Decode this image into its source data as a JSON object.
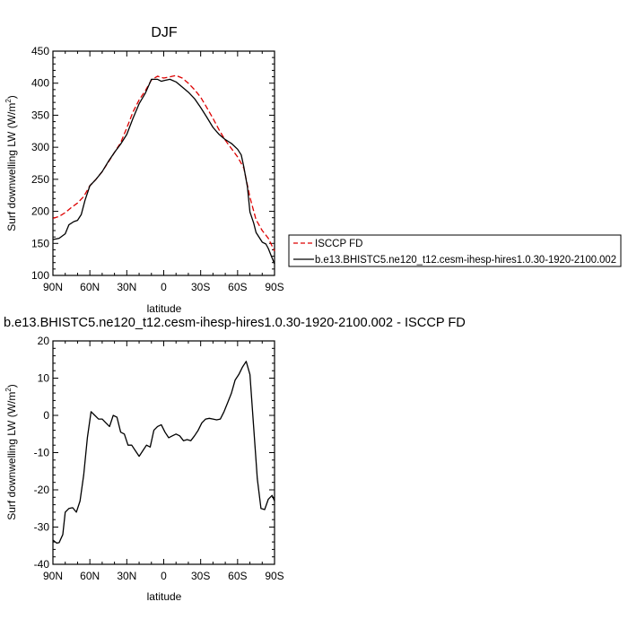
{
  "chart_data": [
    {
      "type": "line",
      "title": "DJF",
      "xlabel": "latitude",
      "ylabel": "Surf downwelling LW (W/m",
      "ylabel_sup": "2",
      "ylabel_close": ")",
      "xlim": [
        90,
        -90
      ],
      "ylim": [
        100,
        450
      ],
      "x_ticks": [
        90,
        60,
        30,
        0,
        -30,
        -60,
        -90
      ],
      "x_tick_labels": [
        "90N",
        "60N",
        "30N",
        "0",
        "30S",
        "60S",
        "90S"
      ],
      "y_ticks": [
        100,
        150,
        200,
        250,
        300,
        350,
        400,
        450
      ],
      "y_tick_labels": [
        "100",
        "150",
        "200",
        "250",
        "300",
        "350",
        "400",
        "450"
      ],
      "legend_position": "right",
      "series": [
        {
          "name": "ISCCP FD",
          "color": "#dd0000",
          "dash": true,
          "x": [
            90,
            85,
            80,
            75,
            70,
            65,
            60,
            55,
            50,
            45,
            40,
            35,
            30,
            25,
            20,
            15,
            10,
            5,
            2,
            0,
            -5,
            -10,
            -15,
            -20,
            -25,
            -30,
            -35,
            -40,
            -45,
            -50,
            -55,
            -60,
            -65,
            -70,
            -75,
            -80,
            -85,
            -90
          ],
          "y": [
            189,
            192,
            198,
            206,
            213,
            223,
            240,
            250,
            262,
            277,
            292,
            307,
            330,
            355,
            374,
            388,
            405,
            411,
            409,
            408,
            410,
            412,
            408,
            400,
            390,
            378,
            362,
            345,
            327,
            311,
            298,
            285,
            268,
            222,
            187,
            170,
            158,
            138
          ]
        },
        {
          "name": "b.e13.BHISTC5.ne120_t12.cesm-ihesp-hires1.0.30-1920-2100.002",
          "color": "#000000",
          "dash": false,
          "x": [
            90,
            85,
            80,
            77,
            73,
            70,
            67,
            64,
            60,
            55,
            50,
            45,
            40,
            35,
            30,
            25,
            20,
            15,
            10,
            5,
            2,
            0,
            -5,
            -10,
            -15,
            -20,
            -25,
            -30,
            -35,
            -40,
            -45,
            -50,
            -55,
            -60,
            -63,
            -65,
            -68,
            -70,
            -73,
            -75,
            -80,
            -83,
            -85,
            -87,
            -90
          ],
          "y": [
            156,
            158,
            165,
            179,
            184,
            186,
            195,
            217,
            240,
            250,
            262,
            278,
            292,
            305,
            320,
            345,
            368,
            384,
            406,
            406,
            403,
            404,
            406,
            402,
            394,
            386,
            376,
            362,
            347,
            331,
            320,
            312,
            306,
            297,
            288,
            270,
            238,
            199,
            182,
            167,
            152,
            149,
            142,
            132,
            118
          ]
        }
      ]
    },
    {
      "type": "line",
      "title": "b.e13.BHISTC5.ne120_t12.cesm-ihesp-hires1.0.30-1920-2100.002 - ISCCP FD",
      "xlabel": "latitude",
      "ylabel": "Surf downwelling LW (W/m",
      "ylabel_sup": "2",
      "ylabel_close": ")",
      "xlim": [
        90,
        -90
      ],
      "ylim": [
        -40,
        20
      ],
      "x_ticks": [
        90,
        60,
        30,
        0,
        -30,
        -60,
        -90
      ],
      "x_tick_labels": [
        "90N",
        "60N",
        "30N",
        "0",
        "30S",
        "60S",
        "90S"
      ],
      "y_ticks": [
        -40,
        -30,
        -20,
        -10,
        0,
        10,
        20
      ],
      "y_tick_labels": [
        "-40",
        "-30",
        "-20",
        "-10",
        "0",
        "10",
        "20"
      ],
      "series": [
        {
          "color": "#000000",
          "dash": false,
          "x": [
            90,
            87,
            85,
            82,
            80,
            77,
            74,
            71,
            68,
            65,
            62,
            59,
            56,
            53,
            50,
            47,
            44,
            41,
            38,
            35,
            32,
            29,
            26,
            23,
            20,
            17,
            14,
            11,
            8,
            5,
            2,
            -1,
            -4,
            -7,
            -10,
            -13,
            -16,
            -19,
            -22,
            -25,
            -28,
            -31,
            -34,
            -37,
            -40,
            -43,
            -46,
            -49,
            -52,
            -55,
            -58,
            -61,
            -64,
            -67,
            -70,
            -73,
            -76,
            -79,
            -82,
            -85,
            -88,
            -90
          ],
          "y": [
            -33.5,
            -34.3,
            -34.2,
            -32,
            -26,
            -25,
            -24.8,
            -26,
            -23,
            -16,
            -6,
            1,
            0,
            -1,
            -1,
            -2,
            -3,
            0,
            -0.5,
            -4.5,
            -5,
            -8,
            -8,
            -9.5,
            -11,
            -9.5,
            -8,
            -8.5,
            -4,
            -3,
            -2.5,
            -4.5,
            -6,
            -5.5,
            -5,
            -5.5,
            -6.8,
            -6.5,
            -6.8,
            -5.5,
            -4,
            -2,
            -1,
            -0.8,
            -1,
            -1.2,
            -1,
            1,
            3.5,
            6,
            9.5,
            11,
            13,
            14.5,
            11,
            -3,
            -17,
            -25,
            -25.3,
            -22.5,
            -21.5,
            -23
          ]
        }
      ]
    }
  ]
}
